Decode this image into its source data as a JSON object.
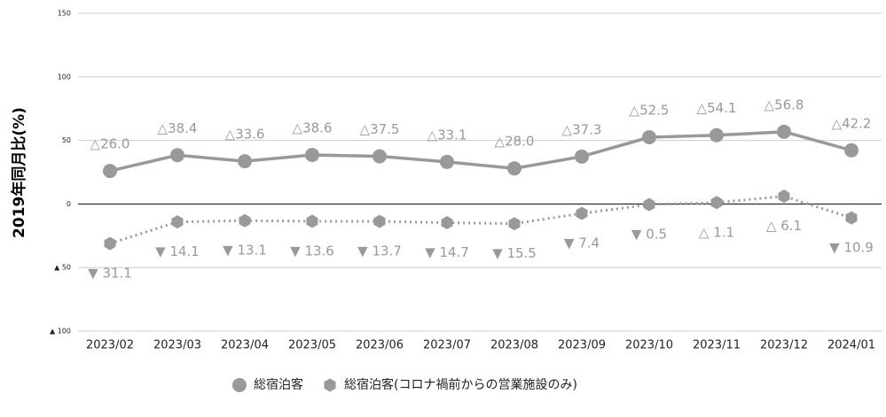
{
  "chart_data": {
    "type": "line",
    "y_label": "2019年同月比(%)",
    "categories": [
      "2023/02",
      "2023/03",
      "2023/04",
      "2023/05",
      "2023/06",
      "2023/07",
      "2023/08",
      "2023/09",
      "2023/10",
      "2023/11",
      "2023/12",
      "2024/01"
    ],
    "series": [
      {
        "name": "総宿泊客",
        "color": "#999999",
        "line_style": "solid",
        "marker": "circle",
        "values": [
          26.0,
          38.4,
          33.6,
          38.6,
          37.5,
          33.1,
          28.0,
          37.3,
          52.5,
          54.1,
          56.8,
          42.2
        ],
        "value_labels": [
          "△26.0",
          "△38.4",
          "△33.6",
          "△38.6",
          "△37.5",
          "△33.1",
          "△28.0",
          "△37.3",
          "△52.5",
          "△54.1",
          "△56.8",
          "△42.2"
        ]
      },
      {
        "name": "総宿泊客(コロナ禍前からの営業施設のみ)",
        "color": "#999999",
        "line_style": "dotted",
        "marker": "hexagon",
        "values": [
          -31.1,
          -14.1,
          -13.1,
          -13.6,
          -13.7,
          -14.7,
          -15.5,
          -7.4,
          -0.5,
          1.1,
          6.1,
          -10.9
        ],
        "value_labels": [
          "▼ 31.1",
          "▼ 14.1",
          "▼ 13.1",
          "▼ 13.6",
          "▼ 13.7",
          "▼ 14.7",
          "▼ 15.5",
          "▼ 7.4",
          "▼ 0.5",
          "△ 1.1",
          "△ 6.1",
          "▼ 10.9"
        ]
      }
    ],
    "ylim": [
      -100,
      150
    ],
    "yticks": [
      150,
      100,
      50,
      0,
      {
        "value": -50,
        "label": "▲ 50"
      },
      {
        "value": -100,
        "label": "▲ 100"
      }
    ],
    "grid": true,
    "legend": "bottom"
  }
}
